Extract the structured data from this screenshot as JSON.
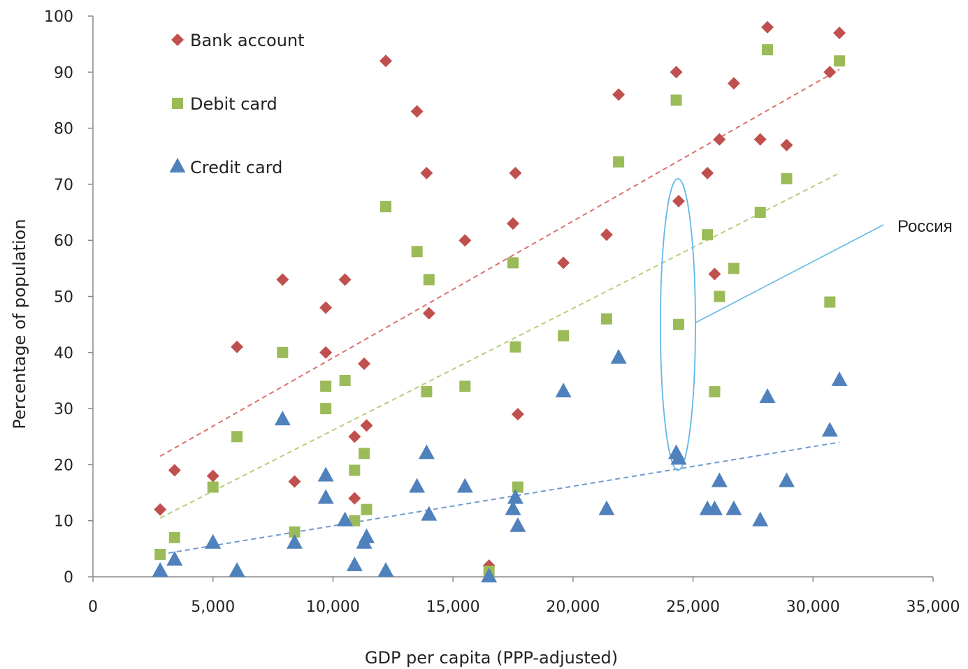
{
  "chart_data": {
    "type": "scatter",
    "title": "",
    "xlabel": "GDP per capita (PPP-adjusted)",
    "ylabel": "Percentage of population",
    "xlim": [
      0,
      35000
    ],
    "ylim": [
      0,
      100
    ],
    "x_ticks": [
      0,
      5000,
      10000,
      15000,
      20000,
      25000,
      30000,
      35000
    ],
    "x_tick_labels": [
      "0",
      "5,000",
      "10,000",
      "15,000",
      "20,000",
      "25,000",
      "30,000",
      "35,000"
    ],
    "y_ticks": [
      0,
      10,
      20,
      30,
      40,
      50,
      60,
      70,
      80,
      90,
      100
    ],
    "y_tick_labels": [
      "0",
      "10",
      "20",
      "30",
      "40",
      "50",
      "60",
      "70",
      "80",
      "90",
      "100"
    ],
    "grid": false,
    "legend": "top-left",
    "series": [
      {
        "name": "Bank account",
        "marker": "diamond",
        "color": "#c0504d",
        "trend_color": "#d9726f",
        "trendline": [
          [
            2800,
            21.5
          ],
          [
            31100,
            90.5
          ]
        ],
        "points": [
          [
            2800,
            12
          ],
          [
            3400,
            19
          ],
          [
            5000,
            18
          ],
          [
            6000,
            41
          ],
          [
            7900,
            53
          ],
          [
            8400,
            17
          ],
          [
            9700,
            48
          ],
          [
            9700,
            40
          ],
          [
            10500,
            53
          ],
          [
            10900,
            14
          ],
          [
            10900,
            25
          ],
          [
            11300,
            38
          ],
          [
            11400,
            27
          ],
          [
            12200,
            92
          ],
          [
            13500,
            83
          ],
          [
            13900,
            72
          ],
          [
            14000,
            47
          ],
          [
            15500,
            60
          ],
          [
            16500,
            2
          ],
          [
            17500,
            63
          ],
          [
            17600,
            72
          ],
          [
            17700,
            29
          ],
          [
            19600,
            56
          ],
          [
            21400,
            61
          ],
          [
            21900,
            86
          ],
          [
            24300,
            90
          ],
          [
            24400,
            67
          ],
          [
            25600,
            72
          ],
          [
            25900,
            54
          ],
          [
            26100,
            78
          ],
          [
            26700,
            88
          ],
          [
            27800,
            78
          ],
          [
            28100,
            98
          ],
          [
            28900,
            77
          ],
          [
            30700,
            90
          ],
          [
            31100,
            97
          ]
        ]
      },
      {
        "name": "Debit card",
        "marker": "square",
        "color": "#9bbb59",
        "trend_color": "#b3cf7e",
        "trendline": [
          [
            2800,
            10.5
          ],
          [
            31100,
            72
          ]
        ],
        "points": [
          [
            2800,
            4
          ],
          [
            3400,
            7
          ],
          [
            5000,
            16
          ],
          [
            6000,
            25
          ],
          [
            7900,
            40
          ],
          [
            8400,
            8
          ],
          [
            9700,
            34
          ],
          [
            9700,
            30
          ],
          [
            10500,
            35
          ],
          [
            10900,
            19
          ],
          [
            10900,
            10
          ],
          [
            11300,
            22
          ],
          [
            11400,
            12
          ],
          [
            12200,
            66
          ],
          [
            13500,
            58
          ],
          [
            13900,
            33
          ],
          [
            14000,
            53
          ],
          [
            15500,
            34
          ],
          [
            16500,
            1
          ],
          [
            17500,
            56
          ],
          [
            17600,
            41
          ],
          [
            17700,
            16
          ],
          [
            19600,
            43
          ],
          [
            21400,
            46
          ],
          [
            21900,
            74
          ],
          [
            24300,
            85
          ],
          [
            24400,
            45
          ],
          [
            25600,
            61
          ],
          [
            25900,
            33
          ],
          [
            26100,
            50
          ],
          [
            26700,
            55
          ],
          [
            27800,
            65
          ],
          [
            28100,
            94
          ],
          [
            28900,
            71
          ],
          [
            30700,
            49
          ],
          [
            31100,
            92
          ]
        ]
      },
      {
        "name": "Credit card",
        "marker": "triangle",
        "color": "#4f81bd",
        "trend_color": "#6f9bd0",
        "trendline": [
          [
            2800,
            4
          ],
          [
            31100,
            24
          ]
        ],
        "points": [
          [
            2800,
            1
          ],
          [
            3400,
            3
          ],
          [
            5000,
            6
          ],
          [
            6000,
            1
          ],
          [
            7900,
            28
          ],
          [
            8400,
            6
          ],
          [
            9700,
            18
          ],
          [
            9700,
            14
          ],
          [
            10500,
            10
          ],
          [
            10900,
            2
          ],
          [
            11300,
            6
          ],
          [
            11400,
            7
          ],
          [
            12200,
            1
          ],
          [
            13500,
            16
          ],
          [
            13900,
            22
          ],
          [
            14000,
            11
          ],
          [
            15500,
            16
          ],
          [
            16500,
            0
          ],
          [
            17500,
            12
          ],
          [
            17600,
            14
          ],
          [
            17700,
            9
          ],
          [
            19600,
            33
          ],
          [
            21400,
            12
          ],
          [
            21900,
            39
          ],
          [
            24300,
            22
          ],
          [
            24400,
            21
          ],
          [
            25600,
            12
          ],
          [
            25900,
            12
          ],
          [
            26100,
            17
          ],
          [
            26700,
            12
          ],
          [
            27800,
            10
          ],
          [
            28100,
            32
          ],
          [
            28900,
            17
          ],
          [
            30700,
            26
          ],
          [
            31100,
            35
          ]
        ]
      }
    ],
    "annotations": [
      {
        "text": "Россия",
        "highlight_x": 24400,
        "highlight_y_range": [
          19,
          71
        ],
        "color": "#63b8e8"
      }
    ]
  }
}
